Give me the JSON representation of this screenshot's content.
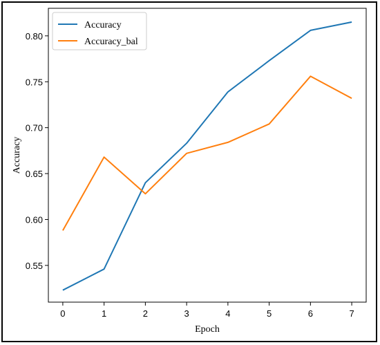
{
  "chart_data": {
    "type": "line",
    "title": "",
    "xlabel": "Epoch",
    "ylabel": "Accuracy",
    "x": [
      0,
      1,
      2,
      3,
      4,
      5,
      6,
      7
    ],
    "xlim": [
      -0.35,
      7.35
    ],
    "ylim": [
      0.51,
      0.83
    ],
    "xticks": [
      0,
      1,
      2,
      3,
      4,
      5,
      6,
      7
    ],
    "yticks": [
      0.55,
      0.6,
      0.65,
      0.7,
      0.75,
      0.8
    ],
    "ytick_labels": [
      "0.55",
      "0.60",
      "0.65",
      "0.70",
      "0.75",
      "0.80"
    ],
    "grid": false,
    "legend_position": "top-left",
    "series": [
      {
        "name": "Accuracy",
        "color": "#1f77b4",
        "values": [
          0.523,
          0.546,
          0.64,
          0.683,
          0.739,
          0.773,
          0.806,
          0.815
        ]
      },
      {
        "name": "Accuracy_bal",
        "color": "#ff7f0e",
        "values": [
          0.588,
          0.668,
          0.628,
          0.672,
          0.684,
          0.704,
          0.756,
          0.732
        ]
      }
    ]
  }
}
